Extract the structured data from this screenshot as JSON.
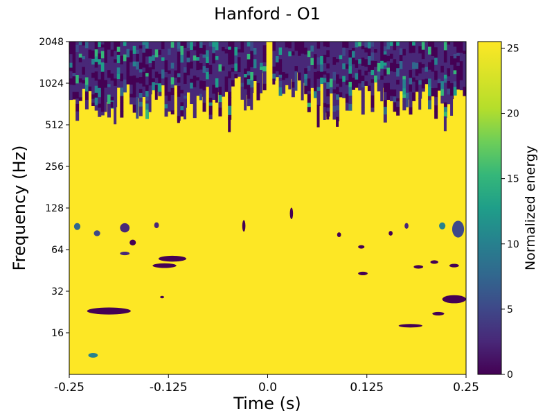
{
  "chart_data": {
    "type": "heatmap",
    "title": "Hanford - O1",
    "xlabel": "Time (s)",
    "ylabel": "Frequency (Hz)",
    "xlim": [
      -0.25,
      0.25
    ],
    "ylim": [
      8,
      2048
    ],
    "yscale": "log2",
    "x_ticks": [
      {
        "value": -0.25,
        "label": "-0.25"
      },
      {
        "value": -0.125,
        "label": "-0.125"
      },
      {
        "value": 0.0,
        "label": "0.0"
      },
      {
        "value": 0.125,
        "label": "0.125"
      },
      {
        "value": 0.25,
        "label": "0.25"
      }
    ],
    "y_ticks": [
      {
        "value": 16,
        "label": "16"
      },
      {
        "value": 32,
        "label": "32"
      },
      {
        "value": 64,
        "label": "64"
      },
      {
        "value": 128,
        "label": "128"
      },
      {
        "value": 256,
        "label": "256"
      },
      {
        "value": 512,
        "label": "512"
      },
      {
        "value": 1024,
        "label": "1024"
      },
      {
        "value": 2048,
        "label": "2048"
      }
    ],
    "colorbar": {
      "label": "Normalized energy",
      "colormap": "viridis",
      "range": [
        0,
        25.5
      ],
      "ticks": [
        {
          "value": 0,
          "label": "0"
        },
        {
          "value": 5,
          "label": "5"
        },
        {
          "value": 10,
          "label": "10"
        },
        {
          "value": 15,
          "label": "15"
        },
        {
          "value": 20,
          "label": "20"
        },
        {
          "value": 25,
          "label": "25"
        }
      ]
    },
    "background_energy": 25.5,
    "low_energy_blobs": [
      {
        "t": -0.2,
        "f": 23,
        "dt": 0.055,
        "df": 1.06,
        "energy": 0
      },
      {
        "t": -0.22,
        "f": 11,
        "dt": 0.012,
        "df": 1.04,
        "energy": 12
      },
      {
        "t": -0.12,
        "f": 55,
        "dt": 0.035,
        "df": 1.05,
        "energy": 0
      },
      {
        "t": -0.13,
        "f": 49,
        "dt": 0.03,
        "df": 1.04,
        "energy": 0
      },
      {
        "t": -0.18,
        "f": 60,
        "dt": 0.012,
        "df": 1.03,
        "energy": 2
      },
      {
        "t": -0.24,
        "f": 94,
        "dt": 0.008,
        "df": 1.06,
        "energy": 8
      },
      {
        "t": -0.215,
        "f": 84,
        "dt": 0.008,
        "df": 1.05,
        "energy": 5
      },
      {
        "t": -0.18,
        "f": 92,
        "dt": 0.012,
        "df": 1.08,
        "energy": 3
      },
      {
        "t": -0.17,
        "f": 72,
        "dt": 0.008,
        "df": 1.05,
        "energy": 1
      },
      {
        "t": -0.14,
        "f": 96,
        "dt": 0.006,
        "df": 1.05,
        "energy": 2
      },
      {
        "t": -0.133,
        "f": 29,
        "dt": 0.005,
        "df": 1.02,
        "energy": 0
      },
      {
        "t": -0.03,
        "f": 95,
        "dt": 0.004,
        "df": 1.1,
        "energy": 0
      },
      {
        "t": 0.03,
        "f": 117,
        "dt": 0.004,
        "df": 1.1,
        "energy": 0
      },
      {
        "t": 0.09,
        "f": 82,
        "dt": 0.005,
        "df": 1.04,
        "energy": 0
      },
      {
        "t": 0.118,
        "f": 67,
        "dt": 0.008,
        "df": 1.03,
        "energy": 0
      },
      {
        "t": 0.12,
        "f": 43,
        "dt": 0.012,
        "df": 1.03,
        "energy": 0
      },
      {
        "t": 0.19,
        "f": 48,
        "dt": 0.012,
        "df": 1.03,
        "energy": 0
      },
      {
        "t": 0.21,
        "f": 52,
        "dt": 0.01,
        "df": 1.03,
        "energy": 0
      },
      {
        "t": 0.235,
        "f": 49,
        "dt": 0.012,
        "df": 1.03,
        "energy": 0
      },
      {
        "t": 0.235,
        "f": 28,
        "dt": 0.03,
        "df": 1.07,
        "energy": 0
      },
      {
        "t": 0.215,
        "f": 22,
        "dt": 0.015,
        "df": 1.03,
        "energy": 0
      },
      {
        "t": 0.18,
        "f": 18,
        "dt": 0.03,
        "df": 1.03,
        "energy": 0
      },
      {
        "t": 0.24,
        "f": 90,
        "dt": 0.015,
        "df": 1.15,
        "energy": 6
      },
      {
        "t": 0.22,
        "f": 95,
        "dt": 0.008,
        "df": 1.06,
        "energy": 12
      },
      {
        "t": 0.155,
        "f": 84,
        "dt": 0.005,
        "df": 1.04,
        "energy": 1
      },
      {
        "t": 0.175,
        "f": 95,
        "dt": 0.005,
        "df": 1.05,
        "energy": 2
      }
    ]
  }
}
